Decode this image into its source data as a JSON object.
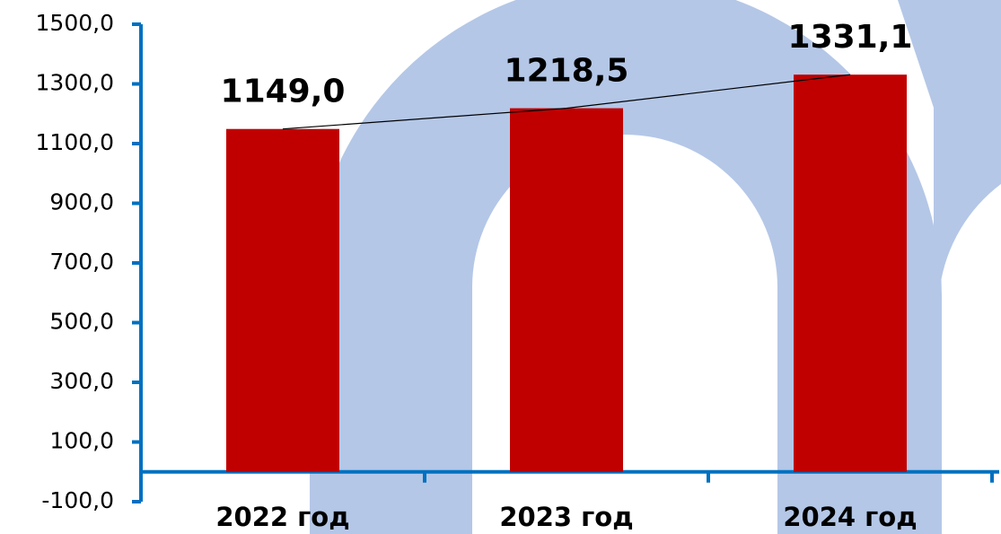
{
  "chart_data": {
    "type": "bar",
    "categories": [
      "2022 год",
      "2023 год",
      "2024 год"
    ],
    "values": [
      1149.0,
      1218.5,
      1331.1
    ],
    "value_labels": [
      "1149,0",
      "1218,5",
      "1331,1"
    ],
    "color": "#c00000",
    "trend_line_color": "#000000",
    "axis_color": "#0070c0",
    "ylim": [
      -100,
      1500
    ],
    "yticks": [
      {
        "value": -100,
        "label": "-100,0"
      },
      {
        "value": 100,
        "label": "100,0"
      },
      {
        "value": 300,
        "label": "300,0"
      },
      {
        "value": 500,
        "label": "500,0"
      },
      {
        "value": 700,
        "label": "700,0"
      },
      {
        "value": 900,
        "label": "900,0"
      },
      {
        "value": 1100,
        "label": "1100,0"
      },
      {
        "value": 1300,
        "label": "1300,0"
      },
      {
        "value": 1500,
        "label": "1500,0"
      }
    ],
    "grid": false
  }
}
